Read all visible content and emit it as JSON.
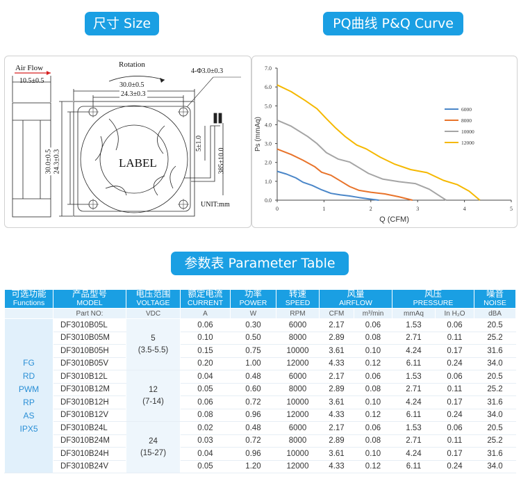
{
  "headings": {
    "size": "尺寸 Size",
    "curve": "PQ曲线 P&Q Curve",
    "table": "参数表 Parameter Table"
  },
  "drawing": {
    "air_flow": "Air Flow",
    "depth": "10.5±0.5",
    "rotation": "Rotation",
    "width_outer": "30.0±0.5",
    "hole_spacing": "24.3±0.3",
    "holes": "4-Φ3.0±0.3",
    "height_outer": "30.0±0.5",
    "height_spacing": "24.3±0.3",
    "label": "LABEL",
    "wire_gap": "5±1.0",
    "wire_length": "385±10.0",
    "unit": "UNIT:mm"
  },
  "chart_data": {
    "type": "line",
    "xlabel": "Q (CFM)",
    "ylabel": "Ps (mmAq)",
    "xlim": [
      0,
      5
    ],
    "ylim": [
      0,
      7
    ],
    "xticks": [
      "0",
      "1",
      "2",
      "3",
      "4",
      "5"
    ],
    "yticks": [
      "0.0",
      "1.0",
      "2.0",
      "3.0",
      "4.0",
      "5.0",
      "6.0",
      "7.0"
    ],
    "legend_position": "right",
    "series": [
      {
        "name": "6000",
        "color": "#4a86c8",
        "x": [
          0,
          0.2,
          0.4,
          0.55,
          0.75,
          0.95,
          1.15,
          1.35,
          1.55,
          1.75,
          1.95,
          2.17
        ],
        "y": [
          1.53,
          1.38,
          1.18,
          0.95,
          0.78,
          0.55,
          0.36,
          0.28,
          0.22,
          0.14,
          0.07,
          0
        ]
      },
      {
        "name": "8000",
        "color": "#e8732a",
        "x": [
          0,
          0.3,
          0.55,
          0.8,
          0.95,
          1.15,
          1.35,
          1.55,
          1.75,
          2.0,
          2.3,
          2.6,
          2.89
        ],
        "y": [
          2.71,
          2.42,
          2.12,
          1.78,
          1.48,
          1.32,
          1.02,
          0.72,
          0.52,
          0.42,
          0.33,
          0.18,
          0
        ]
      },
      {
        "name": "10000",
        "color": "#a5a5a5",
        "x": [
          0,
          0.3,
          0.65,
          0.85,
          1.05,
          1.3,
          1.55,
          1.75,
          1.95,
          2.25,
          2.6,
          2.95,
          3.25,
          3.61
        ],
        "y": [
          4.24,
          3.92,
          3.38,
          3.0,
          2.52,
          2.18,
          2.02,
          1.72,
          1.42,
          1.12,
          0.98,
          0.88,
          0.58,
          0
        ]
      },
      {
        "name": "12000",
        "color": "#f5b800",
        "x": [
          0,
          0.3,
          0.6,
          0.85,
          1.05,
          1.25,
          1.45,
          1.7,
          1.9,
          2.2,
          2.5,
          2.85,
          3.2,
          3.55,
          3.85,
          4.1,
          4.33
        ],
        "y": [
          6.11,
          5.75,
          5.28,
          4.85,
          4.32,
          3.82,
          3.38,
          2.92,
          2.72,
          2.28,
          1.92,
          1.62,
          1.46,
          1.05,
          0.82,
          0.48,
          0
        ]
      }
    ]
  },
  "table": {
    "headers": [
      {
        "zh": "可选功能",
        "en": "Functions"
      },
      {
        "zh": "产品型号",
        "en": "MODEL"
      },
      {
        "zh": "电压范围",
        "en": "VOLTAGE"
      },
      {
        "zh": "额定电流",
        "en": "CURRENT"
      },
      {
        "zh": "功率",
        "en": "POWER"
      },
      {
        "zh": "转速",
        "en": "SPEED"
      },
      {
        "zh": "风量",
        "en": "AIRFLOW"
      },
      {
        "zh": "风压",
        "en": "PRESSURE"
      },
      {
        "zh": "噪音",
        "en": "NOISE"
      }
    ],
    "units": [
      "Part NO:",
      "VDC",
      "A",
      "W",
      "RPM",
      "CFM",
      "m³/min",
      "mmAq",
      "In H₂O",
      "dBA"
    ],
    "functions": "FG\nRD\nPWM\nRP\nAS\nIPX5",
    "voltage_groups": [
      {
        "v": "5",
        "range": "(3.5-5.5)"
      },
      {
        "v": "12",
        "range": "(7-14)"
      },
      {
        "v": "24",
        "range": "(15-27)"
      }
    ],
    "rows": [
      [
        "DF3010B05L",
        "0.06",
        "0.30",
        "6000",
        "2.17",
        "0.06",
        "1.53",
        "0.06",
        "20.5"
      ],
      [
        "DF3010B05M",
        "0.10",
        "0.50",
        "8000",
        "2.89",
        "0.08",
        "2.71",
        "0.11",
        "25.2"
      ],
      [
        "DF3010B05H",
        "0.15",
        "0.75",
        "10000",
        "3.61",
        "0.10",
        "4.24",
        "0.17",
        "31.6"
      ],
      [
        "DF3010B05V",
        "0.20",
        "1.00",
        "12000",
        "4.33",
        "0.12",
        "6.11",
        "0.24",
        "34.0"
      ],
      [
        "DF3010B12L",
        "0.04",
        "0.48",
        "6000",
        "2.17",
        "0.06",
        "1.53",
        "0.06",
        "20.5"
      ],
      [
        "DF3010B12M",
        "0.05",
        "0.60",
        "8000",
        "2.89",
        "0.08",
        "2.71",
        "0.11",
        "25.2"
      ],
      [
        "DF3010B12H",
        "0.06",
        "0.72",
        "10000",
        "3.61",
        "0.10",
        "4.24",
        "0.17",
        "31.6"
      ],
      [
        "DF3010B12V",
        "0.08",
        "0.96",
        "12000",
        "4.33",
        "0.12",
        "6.11",
        "0.24",
        "34.0"
      ],
      [
        "DF3010B24L",
        "0.02",
        "0.48",
        "6000",
        "2.17",
        "0.06",
        "1.53",
        "0.06",
        "20.5"
      ],
      [
        "DF3010B24M",
        "0.03",
        "0.72",
        "8000",
        "2.89",
        "0.08",
        "2.71",
        "0.11",
        "25.2"
      ],
      [
        "DF3010B24H",
        "0.04",
        "0.96",
        "10000",
        "3.61",
        "0.10",
        "4.24",
        "0.17",
        "31.6"
      ],
      [
        "DF3010B24V",
        "0.05",
        "1.20",
        "12000",
        "4.33",
        "0.12",
        "6.11",
        "0.24",
        "34.0"
      ]
    ]
  }
}
